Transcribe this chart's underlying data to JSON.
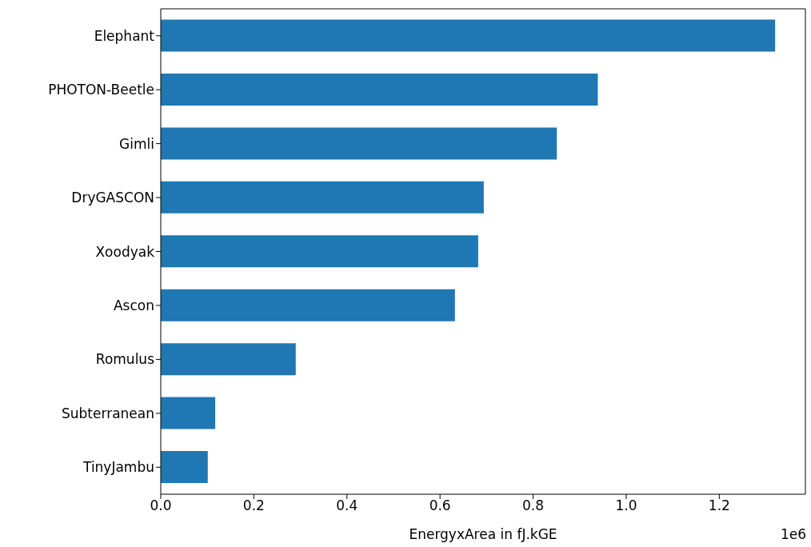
{
  "chart_data": {
    "type": "bar",
    "orientation": "horizontal",
    "xlabel": "EnergyxArea in fJ.kGE",
    "annotations": [
      "1e6"
    ],
    "categories": [
      "Elephant",
      "PHOTON-Beetle",
      "Gimli",
      "DryGASCON",
      "Xoodyak",
      "Ascon",
      "Romulus",
      "Subterranean",
      "TinyJambu"
    ],
    "values": [
      1.32,
      0.939,
      0.851,
      0.694,
      0.682,
      0.632,
      0.29,
      0.117,
      0.101
    ],
    "color": "#1f77b4",
    "xlim": [
      0,
      1.385
    ],
    "xticks": [
      {
        "value": 0,
        "label": "0.0"
      },
      0.2,
      0.4,
      0.6,
      0.8,
      {
        "value": 1,
        "label": "1.0"
      },
      1.2
    ],
    "grid": false
  }
}
